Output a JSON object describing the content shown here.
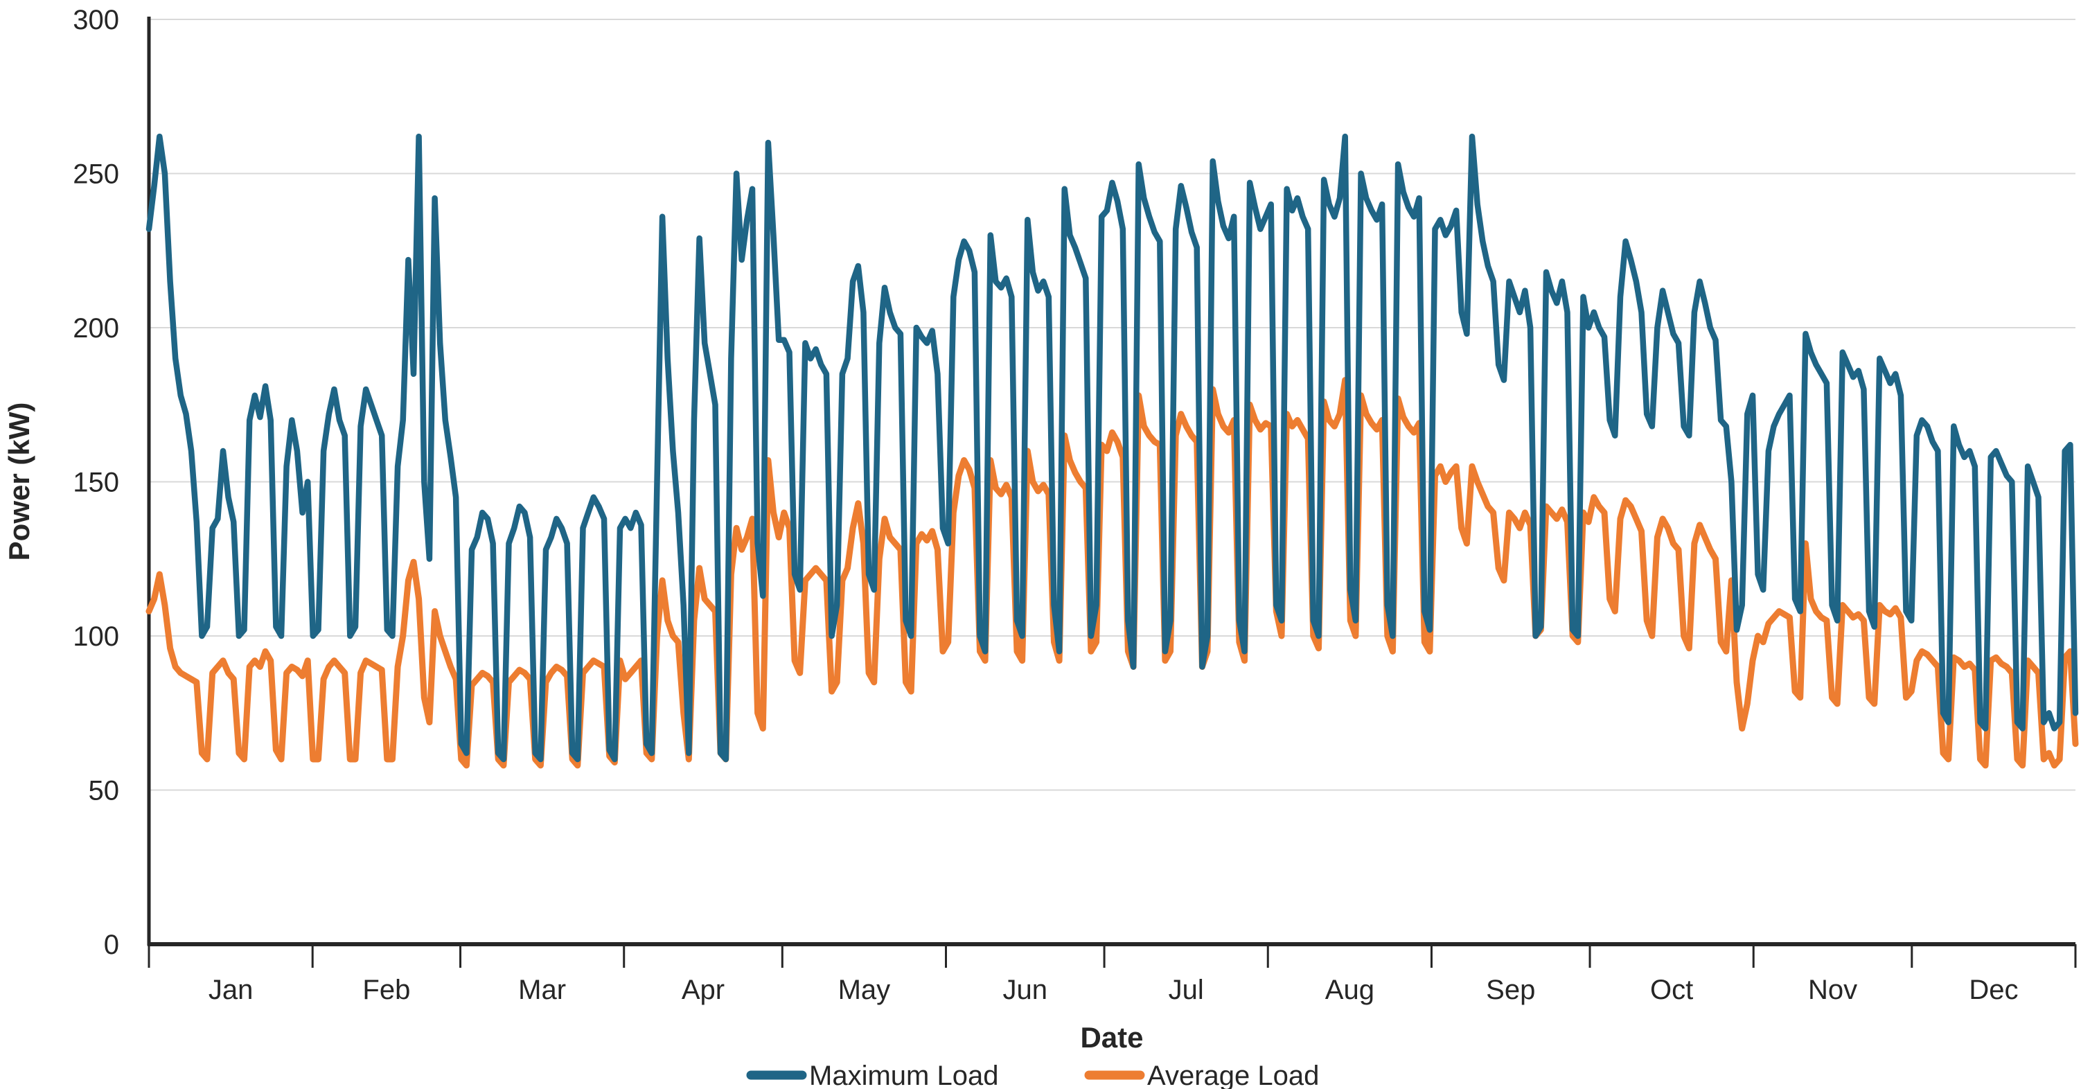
{
  "chart_data": {
    "type": "line",
    "title": "",
    "xlabel": "Date",
    "ylabel": "Power (kW)",
    "ylim": [
      0,
      300
    ],
    "y_ticks": [
      0,
      50,
      100,
      150,
      200,
      250,
      300
    ],
    "y_tick_labels": [
      "0",
      "50",
      "100",
      "150",
      "200",
      "250",
      "300"
    ],
    "x_tick_labels": [
      "Jan",
      "Feb",
      "Mar",
      "Apr",
      "May",
      "Jun",
      "Jul",
      "Aug",
      "Sep",
      "Oct",
      "Nov",
      "Dec"
    ],
    "month_day_counts": [
      31,
      28,
      31,
      30,
      31,
      30,
      31,
      31,
      30,
      31,
      30,
      31
    ],
    "grid": true,
    "legend_position": "bottom",
    "colors": {
      "axis": "#262626",
      "gridline": "#D9D9D9",
      "text": "#262626",
      "background": "#FFFFFF"
    },
    "series": [
      {
        "name": "Maximum Load",
        "color": "#1F6586",
        "values": [
          232,
          246,
          262,
          250,
          215,
          190,
          178,
          172,
          160,
          137,
          100,
          103,
          135,
          138,
          160,
          145,
          137,
          100,
          102,
          170,
          178,
          171,
          181,
          170,
          103,
          100,
          155,
          170,
          160,
          140,
          150,
          100,
          102,
          160,
          172,
          180,
          170,
          165,
          100,
          103,
          168,
          180,
          175,
          170,
          165,
          102,
          100,
          155,
          170,
          222,
          185,
          262,
          150,
          125,
          242,
          195,
          170,
          158,
          145,
          65,
          62,
          128,
          132,
          140,
          138,
          130,
          62,
          60,
          130,
          135,
          142,
          140,
          132,
          62,
          60,
          128,
          132,
          138,
          135,
          130,
          62,
          60,
          135,
          140,
          145,
          142,
          138,
          63,
          60,
          135,
          138,
          135,
          140,
          136,
          65,
          62,
          150,
          236,
          190,
          160,
          140,
          110,
          62,
          170,
          229,
          195,
          185,
          175,
          62,
          60,
          190,
          250,
          222,
          235,
          245,
          130,
          113,
          260,
          230,
          196,
          196,
          192,
          120,
          115,
          195,
          190,
          193,
          188,
          185,
          100,
          110,
          185,
          190,
          215,
          220,
          205,
          120,
          115,
          195,
          213,
          205,
          200,
          198,
          105,
          100,
          200,
          197,
          195,
          199,
          185,
          135,
          130,
          210,
          222,
          228,
          225,
          218,
          100,
          95,
          230,
          215,
          213,
          216,
          210,
          105,
          100,
          235,
          218,
          212,
          215,
          210,
          110,
          95,
          245,
          230,
          226,
          221,
          216,
          100,
          110,
          236,
          238,
          247,
          241,
          232,
          105,
          90,
          253,
          242,
          236,
          231,
          228,
          95,
          105,
          232,
          246,
          239,
          231,
          226,
          90,
          100,
          254,
          241,
          233,
          229,
          236,
          105,
          95,
          247,
          239,
          232,
          236,
          240,
          110,
          105,
          245,
          238,
          242,
          236,
          232,
          105,
          100,
          248,
          240,
          236,
          242,
          262,
          115,
          105,
          250,
          242,
          238,
          235,
          240,
          110,
          100,
          253,
          244,
          239,
          236,
          242,
          108,
          102,
          232,
          235,
          230,
          233,
          238,
          205,
          198,
          262,
          240,
          228,
          220,
          215,
          188,
          183,
          215,
          210,
          205,
          212,
          200,
          100,
          103,
          218,
          212,
          208,
          215,
          205,
          102,
          100,
          210,
          200,
          205,
          200,
          197,
          170,
          165,
          210,
          228,
          222,
          215,
          205,
          172,
          168,
          200,
          212,
          205,
          198,
          195,
          168,
          165,
          205,
          215,
          208,
          200,
          196,
          170,
          168,
          150,
          102,
          110,
          172,
          178,
          120,
          115,
          160,
          168,
          172,
          175,
          178,
          112,
          108,
          198,
          192,
          188,
          185,
          182,
          110,
          105,
          192,
          188,
          184,
          186,
          180,
          108,
          103,
          190,
          186,
          182,
          185,
          178,
          108,
          105,
          165,
          170,
          168,
          163,
          160,
          75,
          72,
          168,
          162,
          158,
          160,
          155,
          72,
          70,
          158,
          160,
          156,
          152,
          150,
          72,
          70,
          155,
          150,
          145,
          72,
          75,
          70,
          72,
          160,
          162,
          75
        ]
      },
      {
        "name": "Average Load",
        "color": "#ED7D31",
        "values": [
          108,
          112,
          120,
          110,
          96,
          90,
          88,
          87,
          86,
          85,
          62,
          60,
          88,
          90,
          92,
          88,
          86,
          62,
          60,
          90,
          92,
          90,
          95,
          92,
          63,
          60,
          88,
          90,
          89,
          87,
          92,
          60,
          60,
          86,
          90,
          92,
          90,
          88,
          60,
          60,
          88,
          92,
          91,
          90,
          89,
          60,
          60,
          90,
          100,
          118,
          124,
          112,
          80,
          72,
          108,
          100,
          95,
          90,
          86,
          60,
          58,
          84,
          86,
          88,
          87,
          85,
          60,
          58,
          85,
          87,
          89,
          88,
          86,
          60,
          58,
          85,
          88,
          90,
          89,
          87,
          60,
          58,
          88,
          90,
          92,
          91,
          90,
          61,
          59,
          92,
          86,
          88,
          90,
          92,
          62,
          60,
          100,
          118,
          105,
          100,
          98,
          75,
          60,
          105,
          122,
          112,
          110,
          108,
          62,
          60,
          120,
          135,
          128,
          132,
          138,
          75,
          70,
          157,
          140,
          132,
          140,
          135,
          92,
          88,
          118,
          120,
          122,
          120,
          118,
          82,
          85,
          118,
          122,
          135,
          143,
          130,
          88,
          85,
          125,
          138,
          132,
          130,
          128,
          85,
          82,
          130,
          133,
          131,
          134,
          128,
          95,
          98,
          140,
          152,
          157,
          154,
          148,
          95,
          92,
          157,
          148,
          146,
          149,
          145,
          95,
          92,
          160,
          150,
          147,
          149,
          146,
          98,
          92,
          165,
          157,
          153,
          150,
          148,
          95,
          98,
          162,
          160,
          166,
          163,
          158,
          95,
          90,
          178,
          168,
          165,
          163,
          162,
          92,
          95,
          165,
          172,
          168,
          165,
          163,
          90,
          95,
          180,
          172,
          168,
          166,
          170,
          98,
          92,
          175,
          170,
          167,
          169,
          168,
          108,
          100,
          172,
          168,
          170,
          167,
          164,
          100,
          96,
          176,
          170,
          168,
          172,
          183,
          105,
          100,
          178,
          172,
          169,
          167,
          170,
          100,
          95,
          177,
          171,
          168,
          166,
          169,
          98,
          95,
          152,
          155,
          150,
          153,
          155,
          135,
          130,
          155,
          150,
          146,
          142,
          140,
          122,
          118,
          140,
          138,
          135,
          140,
          136,
          100,
          102,
          142,
          140,
          138,
          141,
          137,
          100,
          98,
          140,
          137,
          145,
          142,
          140,
          112,
          108,
          138,
          144,
          142,
          138,
          134,
          105,
          100,
          132,
          138,
          135,
          130,
          128,
          100,
          96,
          130,
          136,
          132,
          128,
          125,
          98,
          95,
          118,
          85,
          70,
          78,
          92,
          100,
          98,
          104,
          106,
          108,
          107,
          106,
          82,
          80,
          130,
          112,
          108,
          106,
          105,
          80,
          78,
          110,
          108,
          106,
          107,
          105,
          80,
          78,
          110,
          108,
          107,
          109,
          106,
          80,
          82,
          92,
          95,
          94,
          92,
          90,
          62,
          60,
          93,
          92,
          90,
          91,
          89,
          60,
          58,
          92,
          93,
          91,
          90,
          88,
          60,
          58,
          92,
          90,
          88,
          60,
          62,
          58,
          60,
          93,
          95,
          65
        ]
      }
    ]
  }
}
